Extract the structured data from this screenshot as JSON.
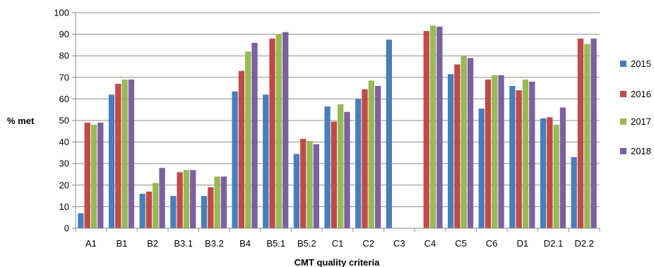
{
  "chart_data": {
    "type": "bar",
    "title": "",
    "xlabel": "CMT quality criteria",
    "ylabel": "% met",
    "ylim": [
      0,
      100
    ],
    "yticks": [
      0,
      10,
      20,
      30,
      40,
      50,
      60,
      70,
      80,
      90,
      100
    ],
    "grid": "horizontal",
    "legend_position": "right",
    "categories": [
      "A1",
      "B1",
      "B2",
      "B3.1",
      "B3.2",
      "B4",
      "B5.1",
      "B5.2",
      "C1",
      "C2",
      "C3",
      "C4",
      "C5",
      "C6",
      "D1",
      "D2.1",
      "D2.2"
    ],
    "series": [
      {
        "name": "2015",
        "color": "#4a7ebb",
        "values": [
          7,
          62,
          16,
          15,
          15,
          63.5,
          62,
          34.5,
          56.5,
          60,
          87.5,
          null,
          71.5,
          55.5,
          66,
          51,
          33
        ]
      },
      {
        "name": "2016",
        "color": "#be4b48",
        "values": [
          49,
          67,
          17,
          26,
          19,
          73,
          88,
          41.5,
          49.5,
          64.5,
          null,
          91.5,
          76,
          69,
          64,
          51.5,
          88
        ]
      },
      {
        "name": "2017",
        "color": "#98b954",
        "values": [
          48,
          69,
          21,
          27,
          24,
          82,
          90,
          40.5,
          57.5,
          68.5,
          null,
          94,
          80,
          71,
          69,
          48,
          85.5
        ]
      },
      {
        "name": "2018",
        "color": "#7d60a0",
        "values": [
          49,
          69,
          28,
          27,
          24,
          86,
          91,
          39,
          54,
          66,
          null,
          93.5,
          79,
          71,
          68,
          56,
          88
        ]
      }
    ]
  }
}
